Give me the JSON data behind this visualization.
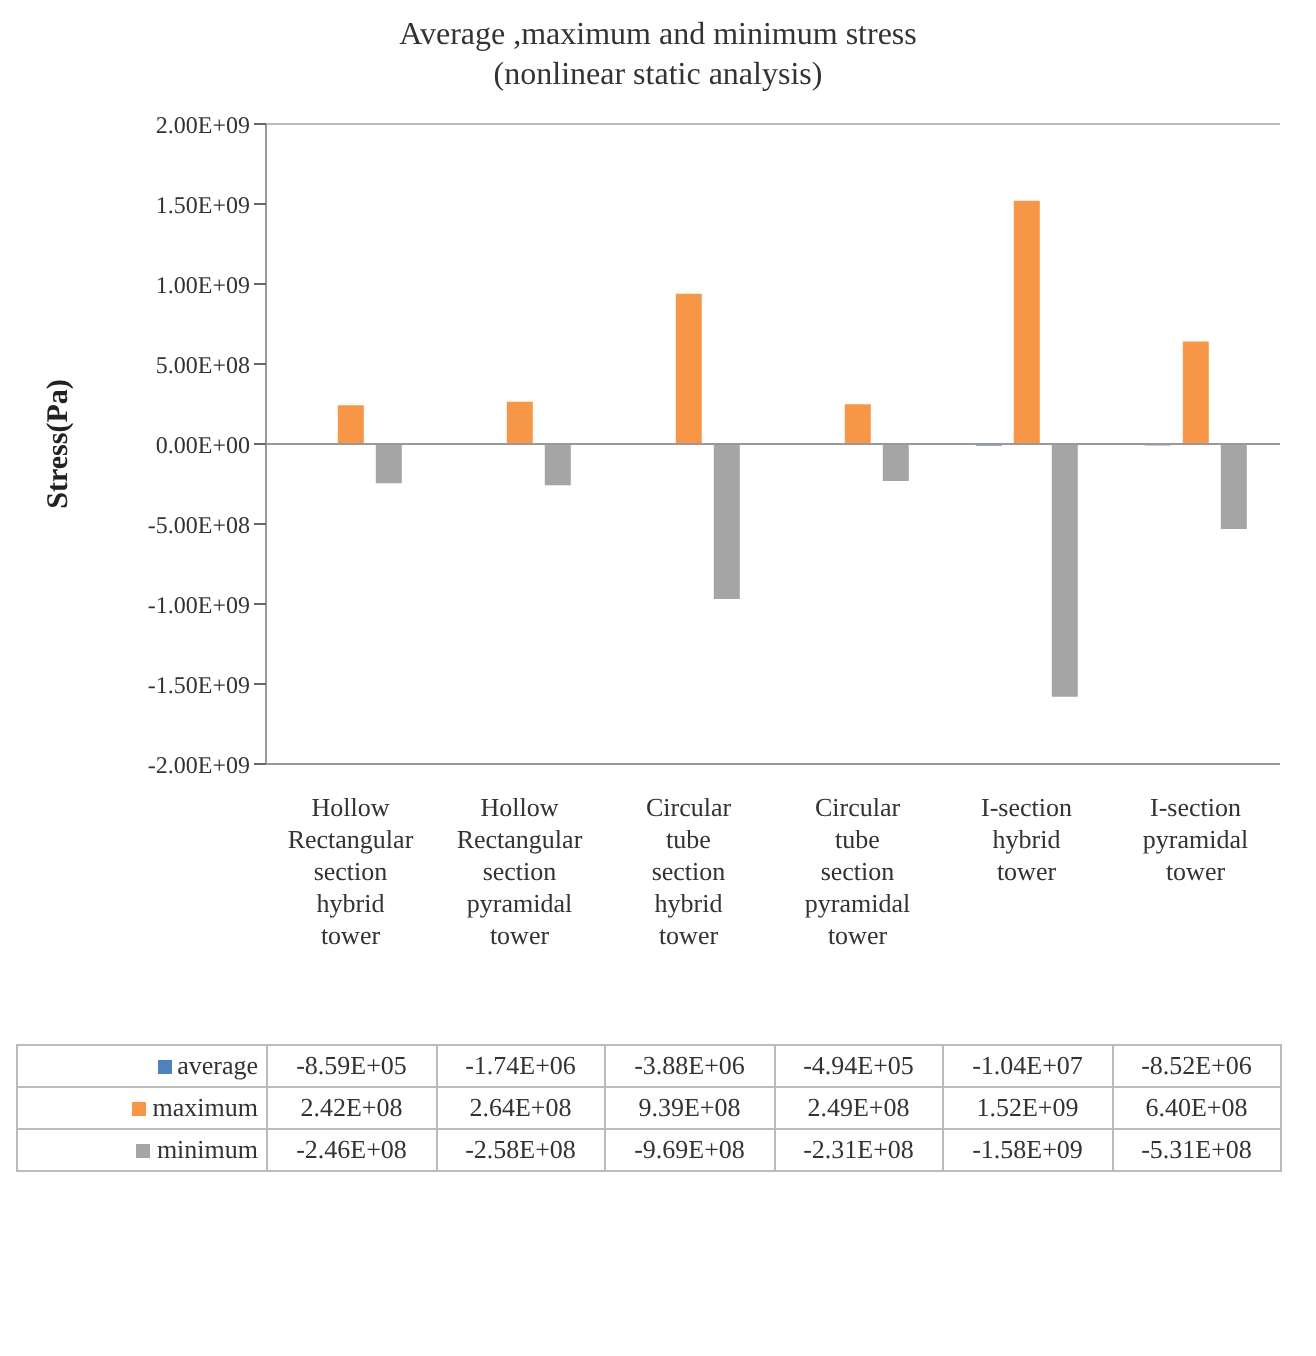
{
  "chart_data": {
    "type": "bar",
    "title": "Average ,maximum and minimum stress\n(nonlinear static analysis)",
    "ylabel": "Stress(Pa)",
    "categories": [
      "Hollow Rectangular section hybrid tower",
      "Hollow Rectangular section pyramidal tower",
      "Circular tube section hybrid tower",
      "Circular tube section pyramidal tower",
      "I-section hybrid tower",
      "I-section pyramidal tower"
    ],
    "series": [
      {
        "name": "average",
        "color": "#4f81bd",
        "values": [
          -859000,
          -1740000,
          -3880000,
          -494000,
          -10400000,
          -8520000
        ],
        "value_labels": [
          "-8.59E+05",
          "-1.74E+06",
          "-3.88E+06",
          "-4.94E+05",
          "-1.04E+07",
          "-8.52E+06"
        ]
      },
      {
        "name": "maximum",
        "color": "#f79646",
        "values": [
          242000000,
          264000000,
          939000000,
          249000000,
          1520000000,
          640000000
        ],
        "value_labels": [
          "2.42E+08",
          "2.64E+08",
          "9.39E+08",
          "2.49E+08",
          "1.52E+09",
          "6.40E+08"
        ]
      },
      {
        "name": "minimum",
        "color": "#a5a5a5",
        "values": [
          -246000000,
          -258000000,
          -969000000,
          -231000000,
          -1580000000,
          -531000000
        ],
        "value_labels": [
          "-2.46E+08",
          "-2.58E+08",
          "-9.69E+08",
          "-2.31E+08",
          "-1.58E+09",
          "-5.31E+08"
        ]
      }
    ],
    "ylim": [
      -2000000000,
      2000000000
    ],
    "yticks": [
      {
        "value": -2000000000,
        "label": "-2.00E+09"
      },
      {
        "value": -1500000000,
        "label": "-1.50E+09"
      },
      {
        "value": -1000000000,
        "label": "-1.00E+09"
      },
      {
        "value": -500000000,
        "label": "-5.00E+08"
      },
      {
        "value": 0,
        "label": "0.00E+00"
      },
      {
        "value": 500000000,
        "label": "5.00E+08"
      },
      {
        "value": 1000000000,
        "label": "1.00E+09"
      },
      {
        "value": 1500000000,
        "label": "1.50E+09"
      },
      {
        "value": 2000000000,
        "label": "2.00E+09"
      }
    ],
    "grid": "y",
    "legend": "bottom"
  }
}
